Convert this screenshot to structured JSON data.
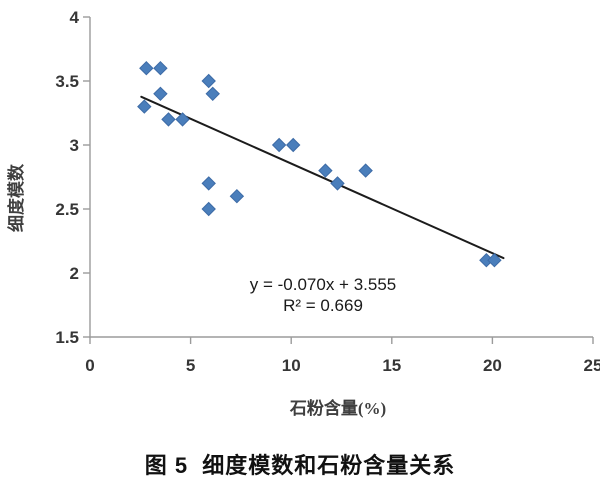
{
  "figure": {
    "caption": "图 5  细度模数和石粉含量关系"
  },
  "chart_data": {
    "type": "scatter",
    "title": "",
    "xlabel": "石粉含量(%)",
    "ylabel": "细度模数",
    "xlim": [
      0,
      25
    ],
    "ylim": [
      1.5,
      4
    ],
    "x_ticks": [
      0,
      5,
      10,
      15,
      20,
      25
    ],
    "y_ticks": [
      1.5,
      2,
      2.5,
      3,
      3.5,
      4
    ],
    "grid": false,
    "legend": false,
    "points": [
      [
        2.8,
        3.6
      ],
      [
        3.5,
        3.6
      ],
      [
        5.9,
        3.5
      ],
      [
        3.5,
        3.4
      ],
      [
        6.1,
        3.4
      ],
      [
        2.7,
        3.3
      ],
      [
        3.9,
        3.2
      ],
      [
        4.6,
        3.2
      ],
      [
        9.4,
        3.0
      ],
      [
        10.1,
        3.0
      ],
      [
        11.7,
        2.8
      ],
      [
        13.7,
        2.8
      ],
      [
        12.3,
        2.7
      ],
      [
        5.9,
        2.7
      ],
      [
        7.3,
        2.6
      ],
      [
        5.9,
        2.5
      ],
      [
        19.7,
        2.1
      ],
      [
        20.1,
        2.1
      ]
    ],
    "trendline": {
      "slope": -0.07,
      "intercept": 3.555,
      "x_start": 2.55,
      "x_end": 20.55,
      "equation": "y = -0.070x + 3.555",
      "r_squared": "R² = 0.669"
    },
    "colors": {
      "marker": "#4a7ebb",
      "marker_edge": "#3d6ba6",
      "trendline": "#1c1c1c",
      "axis": "#9b9b9b",
      "tick_label": "#363636",
      "axis_label": "#3f3f3f",
      "annotation": "#1a1a1a",
      "caption": "#111111"
    }
  }
}
